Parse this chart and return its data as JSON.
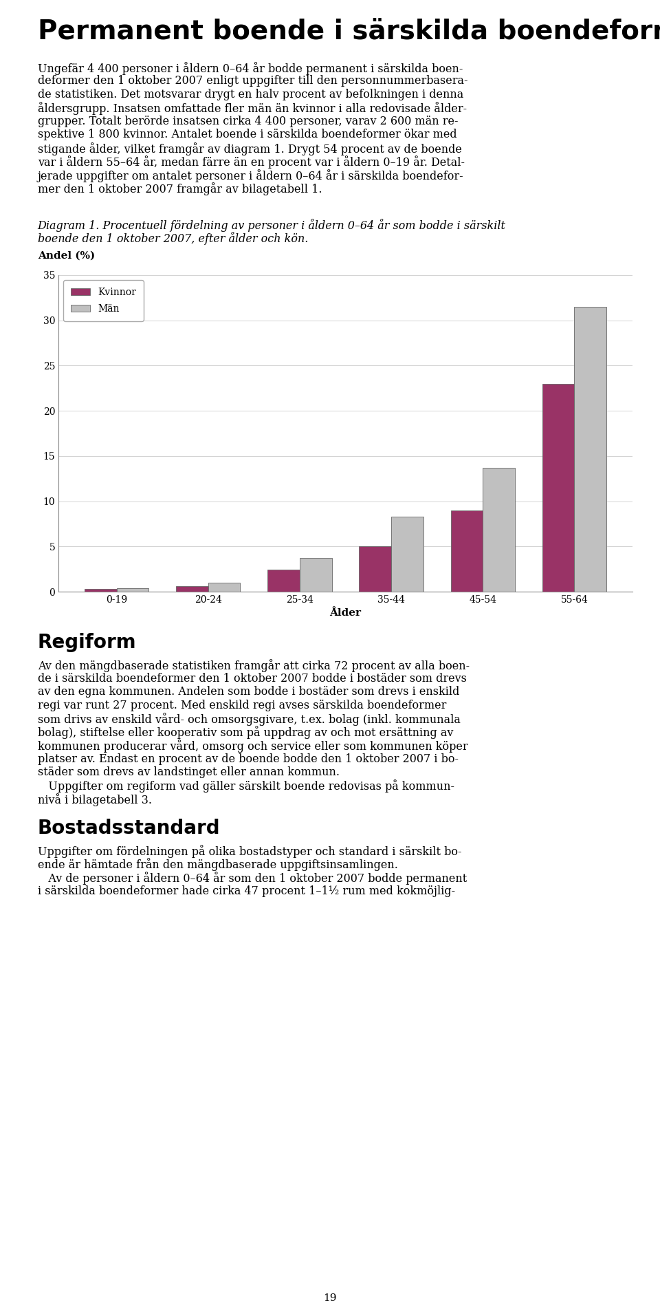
{
  "page_title": "Permanent boende i särskilda boendeformer",
  "ylabel": "Andel (%)",
  "xlabel": "Ålder",
  "yticks": [
    0,
    5,
    10,
    15,
    20,
    25,
    30,
    35
  ],
  "ylim": [
    0,
    35
  ],
  "categories": [
    "0-19",
    "20-24",
    "25-34",
    "35-44",
    "45-54",
    "55-64"
  ],
  "kvinnor_values": [
    0.3,
    0.6,
    2.4,
    5.0,
    9.0,
    23.0
  ],
  "man_values": [
    0.4,
    1.0,
    3.7,
    8.3,
    13.7,
    31.5
  ],
  "kvinnor_color": "#993366",
  "man_color": "#c0c0c0",
  "legend_labels": [
    "Kvinnor",
    "Män"
  ],
  "background_color": "#ffffff",
  "text_color": "#000000",
  "title_fontsize": 28,
  "body_fontsize": 11.5,
  "caption_fontsize": 11.5,
  "ylabel_bold_fontsize": 11,
  "section_title_fontsize": 20,
  "page_number": "19",
  "intro_lines": [
    "Ungefär 4 400 personer i åldern 0–64 år bodde permanent i särskilda boen-",
    "deformer den 1 oktober 2007 enligt uppgifter till den personnummerbasera-",
    "de statistiken. Det motsvarar drygt en halv procent av befolkningen i denna",
    "åldersgrupp. Insatsen omfattade fler män än kvinnor i alla redovisade ålder-",
    "grupper. Totalt berörde insatsen cirka 4 400 personer, varav 2 600 män re-",
    "spektive 1 800 kvinnor. Antalet boende i särskilda boendeformer ökar med",
    "stigande ålder, vilket framgår av diagram 1. Drygt 54 procent av de boende",
    "var i åldern 55–64 år, medan färre än en procent var i åldern 0–19 år. Detal-",
    "jerade uppgifter om antalet personer i åldern 0–64 år i särskilda boendefor-",
    "mer den 1 oktober 2007 framgår av bilagetabell 1."
  ],
  "caption_lines": [
    "Diagram 1. Procentuell fördelning av personer i åldern 0–64 år som bodde i särskilt",
    "boende den 1 oktober 2007, efter ålder och kön."
  ],
  "section2_title": "Regiform",
  "section2_lines": [
    "Av den mängdbaserade statistiken framgår att cirka 72 procent av alla boen-",
    "de i särskilda boendeformer den 1 oktober 2007 bodde i bostäder som drevs",
    "av den egna kommunen. Andelen som bodde i bostäder som drevs i enskild",
    "regi var runt 27 procent. Med enskild regi avses särskilda boendeformer",
    "som drivs av enskild vård- och omsorgsgivare, t.ex. bolag (inkl. kommunala",
    "bolag), stiftelse eller kooperativ som på uppdrag av och mot ersättning av",
    "kommunen producerar vård, omsorg och service eller som kommunen köper",
    "platser av. Endast en procent av de boende bodde den 1 oktober 2007 i bo-",
    "städer som drevs av landstinget eller annan kommun.",
    "   Uppgifter om regiform vad gäller särskilt boende redovisas på kommun-",
    "nivå i bilagetabell 3."
  ],
  "section3_title": "Bostadsstandard",
  "section3_lines": [
    "Uppgifter om fördelningen på olika bostadstyper och standard i särskilt bo-",
    "ende är hämtade från den mängdbaserade uppgiftsinsamlingen.",
    "   Av de personer i åldern 0–64 år som den 1 oktober 2007 bodde permanent",
    "i särskilda boendeformer hade cirka 47 procent 1–1½ rum med kokmöjlig-"
  ]
}
